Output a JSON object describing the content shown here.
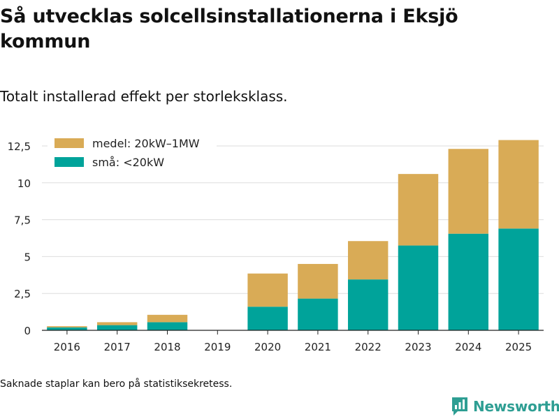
{
  "title": "Så utvecklas solcellsinstallationerna i Eksjö kommun",
  "subtitle": "Totalt installerad effekt per storleksklass.",
  "footnote": "Saknade staplar kan bero på statistiksekretess.",
  "brand": {
    "name": "Newsworthy",
    "icon": "newsworthy-logo-icon",
    "color": "#2e9e93"
  },
  "colors": {
    "small": "#00a39a",
    "medium": "#d9ab56",
    "grid": "#dddddd",
    "axis": "#222222"
  },
  "chart_data": {
    "type": "bar",
    "stacked": true,
    "title": "Så utvecklas solcellsinstallationerna i Eksjö kommun",
    "subtitle": "Totalt installerad effekt per storleksklass.",
    "xlabel": "",
    "ylabel": "",
    "categories": [
      "2016",
      "2017",
      "2018",
      "2019",
      "2020",
      "2021",
      "2022",
      "2023",
      "2024",
      "2025"
    ],
    "series": [
      {
        "name": "små: <20kW",
        "key": "small",
        "values": [
          0.2,
          0.35,
          0.55,
          null,
          1.6,
          2.15,
          3.45,
          5.75,
          6.55,
          6.9
        ]
      },
      {
        "name": "medel: 20kW–1MW",
        "key": "medium",
        "values": [
          0.08,
          0.2,
          0.5,
          null,
          2.25,
          2.35,
          2.6,
          4.85,
          5.75,
          6.0
        ]
      }
    ],
    "legend_order": [
      "medium",
      "small"
    ],
    "yticks": [
      0,
      2.5,
      5,
      7.5,
      10,
      12.5
    ],
    "ytick_labels": [
      "0",
      "2,5",
      "5",
      "7,5",
      "10",
      "12,5"
    ],
    "ylim": [
      0,
      13.4
    ],
    "grid": true,
    "legend_position": "top-left"
  }
}
